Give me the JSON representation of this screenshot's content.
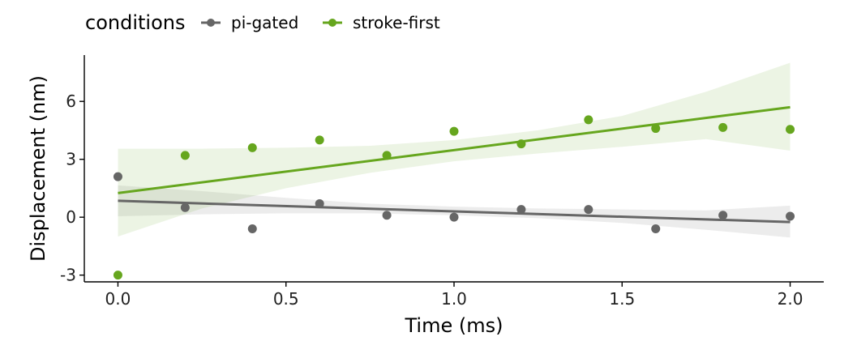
{
  "chart_data": {
    "type": "scatter",
    "xlabel": "Time (ms)",
    "ylabel": "Displacement (nm)",
    "xlim": [
      -0.1,
      2.1
    ],
    "ylim": [
      -3.35,
      8.4
    ],
    "x_ticks": [
      0.0,
      0.5,
      1.0,
      1.5,
      2.0
    ],
    "x_tick_labels": [
      "0.0",
      "0.5",
      "1.0",
      "1.5",
      "2.0"
    ],
    "y_ticks": [
      -3,
      0,
      3,
      6
    ],
    "y_tick_labels": [
      "-3",
      "0",
      "3",
      "6"
    ],
    "grid": false,
    "legend": {
      "title": "conditions",
      "placement": "top-left"
    },
    "series": [
      {
        "name": "pi-gated",
        "color": "#666666",
        "x": [
          0.0,
          0.2,
          0.4,
          0.6,
          0.8,
          1.0,
          1.2,
          1.4,
          1.6,
          1.8,
          2.0
        ],
        "y": [
          2.1,
          0.5,
          -0.6,
          0.7,
          0.1,
          0.0,
          0.4,
          0.4,
          -0.6,
          0.1,
          0.05
        ],
        "fit": {
          "x": [
            0.0,
            2.0
          ],
          "y": [
            0.85,
            -0.25
          ]
        },
        "band": {
          "x": [
            0.0,
            0.25,
            0.5,
            0.75,
            1.0,
            1.25,
            1.5,
            1.75,
            2.0
          ],
          "lower": [
            0.05,
            0.15,
            0.2,
            0.2,
            0.1,
            -0.05,
            -0.3,
            -0.65,
            -1.05
          ],
          "upper": [
            1.65,
            1.35,
            1.0,
            0.7,
            0.55,
            0.45,
            0.4,
            0.35,
            0.6
          ]
        }
      },
      {
        "name": "stroke-first",
        "color": "#66a61e",
        "x": [
          0.0,
          0.2,
          0.4,
          0.6,
          0.8,
          1.0,
          1.2,
          1.4,
          1.6,
          1.8,
          2.0
        ],
        "y": [
          -3.0,
          3.2,
          3.6,
          4.0,
          3.2,
          4.45,
          3.8,
          5.05,
          4.6,
          4.65,
          4.55
        ],
        "fit": {
          "x": [
            0.0,
            2.0
          ],
          "y": [
            1.25,
            5.7
          ]
        },
        "band": {
          "x": [
            0.0,
            0.25,
            0.5,
            0.75,
            1.0,
            1.25,
            1.5,
            1.75,
            2.0
          ],
          "lower": [
            -1.0,
            0.45,
            1.5,
            2.3,
            2.9,
            3.3,
            3.65,
            4.05,
            3.45
          ],
          "upper": [
            3.55,
            3.55,
            3.6,
            3.7,
            4.0,
            4.5,
            5.25,
            6.5,
            8.0
          ]
        }
      }
    ]
  }
}
